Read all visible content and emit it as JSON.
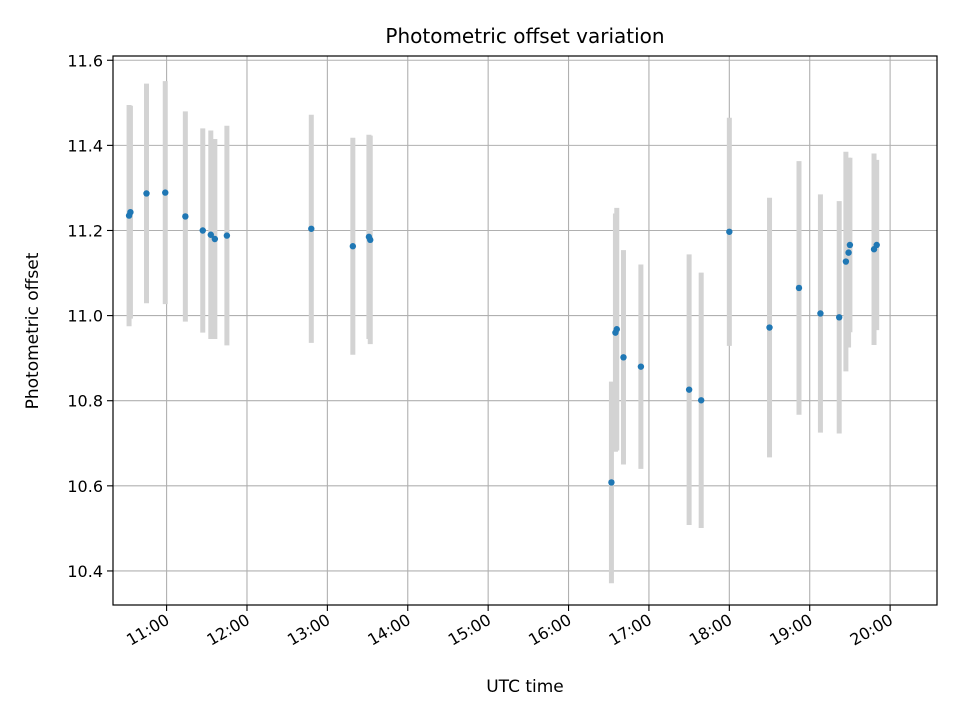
{
  "chart_data": {
    "type": "scatter",
    "title": "Photometric offset variation",
    "xlabel": "UTC time",
    "ylabel": "Photometric offset",
    "x_ticks": [
      "11:00",
      "12:00",
      "13:00",
      "14:00",
      "15:00",
      "16:00",
      "17:00",
      "18:00",
      "19:00",
      "20:00"
    ],
    "y_ticks": [
      "10.4",
      "10.6",
      "10.8",
      "11.0",
      "11.2",
      "11.4",
      "11.6"
    ],
    "xlim": [
      "10:20",
      "20:35"
    ],
    "ylim": [
      10.32,
      11.61
    ],
    "grid": true,
    "colors": {
      "points": "#1f77b4",
      "errorbars": "#d3d3d3",
      "grid": "#b0b0b0"
    },
    "series": [
      {
        "points": [
          {
            "x": "10:32",
            "y": 11.235,
            "err": 0.26
          },
          {
            "x": "10:33",
            "y": 11.243,
            "err": 0.25
          },
          {
            "x": "10:45",
            "y": 11.287,
            "err": 0.258
          },
          {
            "x": "10:59",
            "y": 11.289,
            "err": 0.262
          },
          {
            "x": "11:14",
            "y": 11.233,
            "err": 0.247
          },
          {
            "x": "11:27",
            "y": 11.2,
            "err": 0.24
          },
          {
            "x": "11:33",
            "y": 11.19,
            "err": 0.245
          },
          {
            "x": "11:36",
            "y": 11.18,
            "err": 0.235
          },
          {
            "x": "11:45",
            "y": 11.188,
            "err": 0.258
          },
          {
            "x": "12:48",
            "y": 11.204,
            "err": 0.268
          },
          {
            "x": "13:19",
            "y": 11.163,
            "err": 0.255
          },
          {
            "x": "13:31",
            "y": 11.185,
            "err": 0.24
          },
          {
            "x": "13:32",
            "y": 11.178,
            "err": 0.245
          },
          {
            "x": "16:32",
            "y": 10.608,
            "err": 0.237
          },
          {
            "x": "16:35",
            "y": 10.96,
            "err": 0.28
          },
          {
            "x": "16:36",
            "y": 10.968,
            "err": 0.285
          },
          {
            "x": "16:41",
            "y": 10.902,
            "err": 0.252
          },
          {
            "x": "16:54",
            "y": 10.88,
            "err": 0.24
          },
          {
            "x": "17:30",
            "y": 10.826,
            "err": 0.318
          },
          {
            "x": "17:39",
            "y": 10.801,
            "err": 0.3
          },
          {
            "x": "18:00",
            "y": 11.197,
            "err": 0.268
          },
          {
            "x": "18:30",
            "y": 10.972,
            "err": 0.305
          },
          {
            "x": "18:52",
            "y": 11.065,
            "err": 0.298
          },
          {
            "x": "19:08",
            "y": 11.005,
            "err": 0.28
          },
          {
            "x": "19:22",
            "y": 10.996,
            "err": 0.273
          },
          {
            "x": "19:27",
            "y": 11.127,
            "err": 0.258
          },
          {
            "x": "19:29",
            "y": 11.148,
            "err": 0.223
          },
          {
            "x": "19:30",
            "y": 11.166,
            "err": 0.205
          },
          {
            "x": "19:48",
            "y": 11.156,
            "err": 0.225
          },
          {
            "x": "19:50",
            "y": 11.166,
            "err": 0.2
          }
        ]
      }
    ]
  }
}
